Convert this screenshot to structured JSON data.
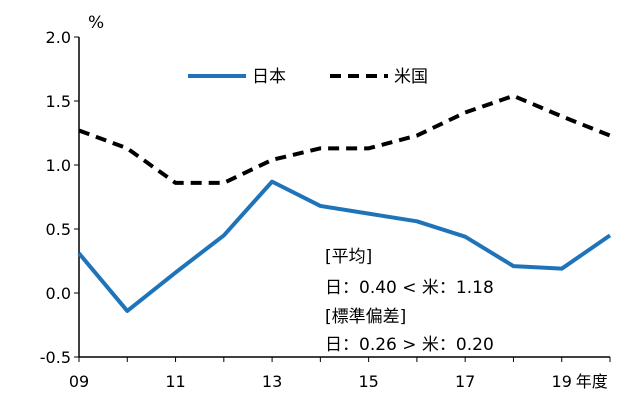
{
  "chart_data": {
    "type": "line",
    "ylabel": "%",
    "xlabel_suffix": "年度",
    "ylim": [
      -0.5,
      2.0
    ],
    "yticks": [
      "2.0",
      "1.5",
      "1.0",
      "0.5",
      "0.0",
      "-0.5"
    ],
    "x": [
      9,
      10,
      11,
      12,
      13,
      14,
      15,
      16,
      17,
      18,
      19,
      20
    ],
    "xtick_labels": [
      "09",
      "11",
      "13",
      "15",
      "17",
      "19"
    ],
    "grid": false,
    "legend_placement": "top",
    "series": [
      {
        "name": "日本",
        "color": "#1f74b9",
        "style": "solid",
        "values": [
          0.31,
          -0.14,
          0.16,
          0.45,
          0.87,
          0.68,
          0.62,
          0.56,
          0.44,
          0.21,
          0.19,
          0.45
        ]
      },
      {
        "name": "米国",
        "color": "#000000",
        "style": "dashed",
        "values": [
          1.27,
          1.13,
          0.86,
          0.86,
          1.04,
          1.13,
          1.13,
          1.23,
          1.41,
          1.54,
          1.38,
          1.23
        ]
      }
    ],
    "annotations": [
      "[平均]",
      "日：0.40 < 米：1.18",
      "[標準偏差]",
      "日：0.26 > 米：0.20"
    ]
  }
}
